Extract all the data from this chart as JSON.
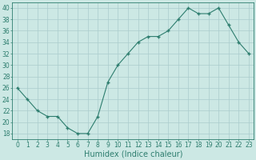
{
  "x": [
    0,
    1,
    2,
    3,
    4,
    5,
    6,
    7,
    8,
    9,
    10,
    11,
    12,
    13,
    14,
    15,
    16,
    17,
    18,
    19,
    20,
    21,
    22,
    23
  ],
  "y": [
    26,
    24,
    22,
    21,
    21,
    19,
    18,
    18,
    21,
    27,
    30,
    32,
    34,
    35,
    35,
    36,
    38,
    40,
    39,
    39,
    40,
    37,
    34,
    32
  ],
  "line_color": "#2d7d6e",
  "marker": "+",
  "marker_size": 3,
  "marker_lw": 1.0,
  "bg_color": "#cce8e4",
  "grid_color": "#aacccc",
  "xlabel": "Humidex (Indice chaleur)",
  "ylim": [
    17,
    41
  ],
  "xlim": [
    -0.5,
    23.5
  ],
  "yticks": [
    18,
    20,
    22,
    24,
    26,
    28,
    30,
    32,
    34,
    36,
    38,
    40
  ],
  "xticks": [
    0,
    1,
    2,
    3,
    4,
    5,
    6,
    7,
    8,
    9,
    10,
    11,
    12,
    13,
    14,
    15,
    16,
    17,
    18,
    19,
    20,
    21,
    22,
    23
  ],
  "tick_label_fontsize": 5.5,
  "xlabel_fontsize": 7
}
